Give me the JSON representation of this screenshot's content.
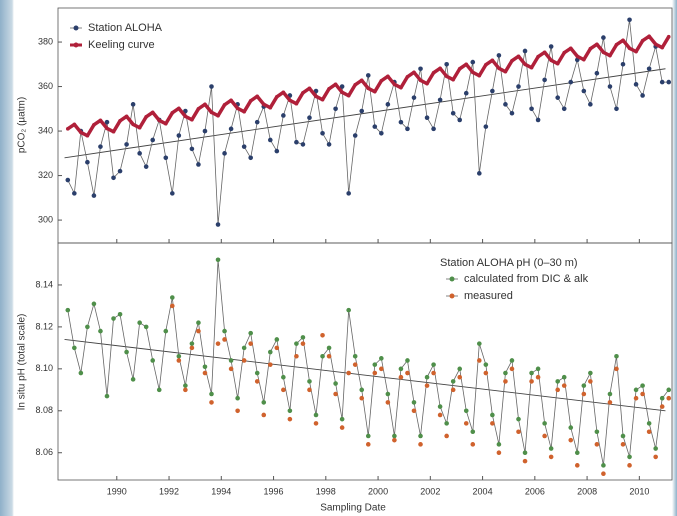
{
  "chart_data": [
    {
      "type": "line",
      "ylabel": "pCO₂ (µatm)",
      "xlim": [
        1987.75,
        2011.25
      ],
      "ylim": [
        289.7,
        395.3
      ],
      "yticks": [
        300,
        320,
        340,
        360,
        380
      ],
      "legend": "top-left",
      "x": [
        1988.125,
        1988.375,
        1988.625,
        1988.875,
        1989.125,
        1989.375,
        1989.625,
        1989.875,
        1990.125,
        1990.375,
        1990.625,
        1990.875,
        1991.125,
        1991.375,
        1991.625,
        1991.875,
        1992.125,
        1992.375,
        1992.625,
        1992.875,
        1993.125,
        1993.375,
        1993.625,
        1993.875,
        1994.125,
        1994.375,
        1994.625,
        1994.875,
        1995.125,
        1995.375,
        1995.625,
        1995.875,
        1996.125,
        1996.375,
        1996.625,
        1996.875,
        1997.125,
        1997.375,
        1997.625,
        1997.875,
        1998.125,
        1998.375,
        1998.625,
        1998.875,
        1999.125,
        1999.375,
        1999.625,
        1999.875,
        2000.125,
        2000.375,
        2000.625,
        2000.875,
        2001.125,
        2001.375,
        2001.625,
        2001.875,
        2002.125,
        2002.375,
        2002.625,
        2002.875,
        2003.125,
        2003.375,
        2003.625,
        2003.875,
        2004.125,
        2004.375,
        2004.625,
        2004.875,
        2005.125,
        2005.375,
        2005.625,
        2005.875,
        2006.125,
        2006.375,
        2006.625,
        2006.875,
        2007.125,
        2007.375,
        2007.625,
        2007.875,
        2008.125,
        2008.375,
        2008.625,
        2008.875,
        2009.125,
        2009.375,
        2009.625,
        2009.875,
        2010.125,
        2010.375,
        2010.625,
        2010.875,
        2011.125
      ],
      "series": [
        {
          "name": "Station ALOHA",
          "color": "#2b3f6b",
          "line": true,
          "values": [
            318,
            312,
            340,
            326,
            311,
            333,
            344,
            319,
            322,
            334,
            352,
            330,
            324,
            336,
            345,
            328,
            312,
            338,
            349,
            332,
            325,
            340,
            360,
            298,
            330,
            341,
            352,
            333,
            328,
            344,
            351,
            336,
            331,
            347,
            356,
            335,
            334,
            346,
            358,
            339,
            334,
            350,
            360,
            312,
            338,
            349,
            365,
            342,
            339,
            352,
            362,
            344,
            341,
            355,
            368,
            346,
            341,
            354,
            370,
            348,
            345,
            357,
            371,
            321,
            342,
            358,
            374,
            352,
            348,
            360,
            376,
            350,
            345,
            363,
            378,
            355,
            350,
            362,
            372,
            358,
            352,
            366,
            382,
            360,
            350,
            370,
            390,
            361,
            356,
            368,
            378,
            362,
            362
          ]
        },
        {
          "name": "Keeling curve",
          "color": "#b0203a",
          "line": true,
          "width": 3.5,
          "values": [
            341.0,
            343.0,
            339.4,
            337.9,
            342.8,
            344.8,
            341.2,
            339.7,
            344.6,
            346.6,
            343.0,
            341.5,
            346.4,
            348.4,
            344.8,
            343.3,
            348.2,
            350.2,
            346.6,
            345.1,
            350.0,
            352.0,
            348.4,
            346.9,
            351.8,
            353.8,
            350.2,
            348.7,
            353.6,
            355.6,
            352.0,
            350.5,
            355.4,
            357.4,
            353.8,
            352.3,
            357.2,
            359.2,
            355.6,
            354.1,
            359.0,
            361.0,
            357.4,
            355.9,
            360.8,
            362.8,
            359.2,
            357.7,
            362.6,
            364.6,
            361.0,
            359.5,
            364.4,
            366.4,
            362.8,
            361.3,
            366.2,
            368.2,
            364.6,
            363.1,
            368.0,
            370.0,
            366.4,
            364.9,
            369.8,
            371.8,
            368.2,
            366.7,
            371.6,
            373.6,
            370.0,
            368.5,
            373.4,
            375.4,
            371.8,
            370.3,
            375.2,
            377.2,
            373.6,
            372.1,
            377.0,
            379.0,
            375.4,
            373.9,
            378.8,
            380.8,
            377.2,
            375.7,
            380.6,
            382.6,
            379.0,
            377.5,
            382.4
          ]
        }
      ],
      "trend": {
        "x": [
          1988,
          2011
        ],
        "values": [
          328,
          368
        ]
      }
    },
    {
      "type": "line",
      "ylabel": "In situ pH (total scale)",
      "xlabel": "Sampling Date",
      "xlim": [
        1987.75,
        2011.25
      ],
      "ylim": [
        8.047,
        8.16
      ],
      "yticks": [
        8.06,
        8.08,
        {
          "value": 8.1,
          "label": "8.10"
        },
        8.12,
        8.14
      ],
      "xticks": [
        1990,
        1992,
        1994,
        1996,
        1998,
        2000,
        2002,
        2004,
        2006,
        2008,
        2010
      ],
      "legend": "top-right",
      "legend_title": "Station ALOHA pH (0–30 m)",
      "x": [
        1988.125,
        1988.375,
        1988.625,
        1988.875,
        1989.125,
        1989.375,
        1989.625,
        1989.875,
        1990.125,
        1990.375,
        1990.625,
        1990.875,
        1991.125,
        1991.375,
        1991.625,
        1991.875,
        1992.125,
        1992.375,
        1992.625,
        1992.875,
        1993.125,
        1993.375,
        1993.625,
        1993.875,
        1994.125,
        1994.375,
        1994.625,
        1994.875,
        1995.125,
        1995.375,
        1995.625,
        1995.875,
        1996.125,
        1996.375,
        1996.625,
        1996.875,
        1997.125,
        1997.375,
        1997.625,
        1997.875,
        1998.125,
        1998.375,
        1998.625,
        1998.875,
        1999.125,
        1999.375,
        1999.625,
        1999.875,
        2000.125,
        2000.375,
        2000.625,
        2000.875,
        2001.125,
        2001.375,
        2001.625,
        2001.875,
        2002.125,
        2002.375,
        2002.625,
        2002.875,
        2003.125,
        2003.375,
        2003.625,
        2003.875,
        2004.125,
        2004.375,
        2004.625,
        2004.875,
        2005.125,
        2005.375,
        2005.625,
        2005.875,
        2006.125,
        2006.375,
        2006.625,
        2006.875,
        2007.125,
        2007.375,
        2007.625,
        2007.875,
        2008.125,
        2008.375,
        2008.625,
        2008.875,
        2009.125,
        2009.375,
        2009.625,
        2009.875,
        2010.125,
        2010.375,
        2010.625,
        2010.875,
        2011.125
      ],
      "series": [
        {
          "name": "calculated from DIC & alk",
          "color": "#4f8f4a",
          "line": true,
          "values": [
            8.128,
            8.11,
            8.098,
            8.12,
            8.131,
            8.118,
            8.087,
            8.124,
            8.126,
            8.108,
            8.095,
            8.122,
            8.12,
            8.104,
            8.09,
            8.118,
            8.134,
            8.106,
            8.092,
            8.112,
            8.122,
            8.101,
            8.088,
            8.152,
            8.118,
            8.104,
            8.086,
            8.11,
            8.117,
            8.098,
            8.084,
            8.108,
            8.114,
            8.096,
            8.08,
            8.112,
            8.115,
            8.094,
            8.078,
            8.106,
            8.11,
            8.093,
            8.076,
            8.128,
            8.106,
            8.09,
            8.068,
            8.102,
            8.105,
            8.088,
            8.068,
            8.1,
            8.104,
            8.084,
            8.068,
            8.096,
            8.102,
            8.082,
            8.074,
            8.094,
            8.1,
            8.08,
            8.07,
            8.112,
            8.102,
            8.078,
            8.064,
            8.098,
            8.104,
            8.076,
            8.06,
            8.098,
            8.1,
            8.074,
            8.062,
            8.094,
            8.096,
            8.072,
            8.06,
            8.092,
            8.098,
            8.07,
            8.054,
            8.088,
            8.106,
            8.068,
            8.058,
            8.09,
            8.092,
            8.074,
            8.062,
            8.086,
            8.09
          ]
        },
        {
          "name": "measured",
          "color": "#d0622d",
          "line": false,
          "values": [
            null,
            null,
            null,
            null,
            null,
            null,
            null,
            null,
            null,
            null,
            null,
            null,
            null,
            null,
            null,
            null,
            8.13,
            8.104,
            8.09,
            8.11,
            8.118,
            8.098,
            8.084,
            8.112,
            8.114,
            8.1,
            8.08,
            8.104,
            8.112,
            8.094,
            8.078,
            8.102,
            8.11,
            8.09,
            8.076,
            8.106,
            8.112,
            8.09,
            8.074,
            8.116,
            8.106,
            8.088,
            8.072,
            8.098,
            8.102,
            8.086,
            8.064,
            8.098,
            8.1,
            8.084,
            8.066,
            8.096,
            8.098,
            8.08,
            8.064,
            8.092,
            8.098,
            8.078,
            8.068,
            8.09,
            8.096,
            8.074,
            8.064,
            8.104,
            8.098,
            8.074,
            8.06,
            8.094,
            8.1,
            8.07,
            8.056,
            8.094,
            8.096,
            8.068,
            8.058,
            8.09,
            8.092,
            8.066,
            8.054,
            8.088,
            8.094,
            8.064,
            8.05,
            8.084,
            8.1,
            8.064,
            8.054,
            8.086,
            8.088,
            8.07,
            8.058,
            8.082,
            8.086
          ]
        }
      ],
      "trend": {
        "x": [
          1988,
          2011
        ],
        "values": [
          8.114,
          8.08
        ]
      }
    }
  ]
}
